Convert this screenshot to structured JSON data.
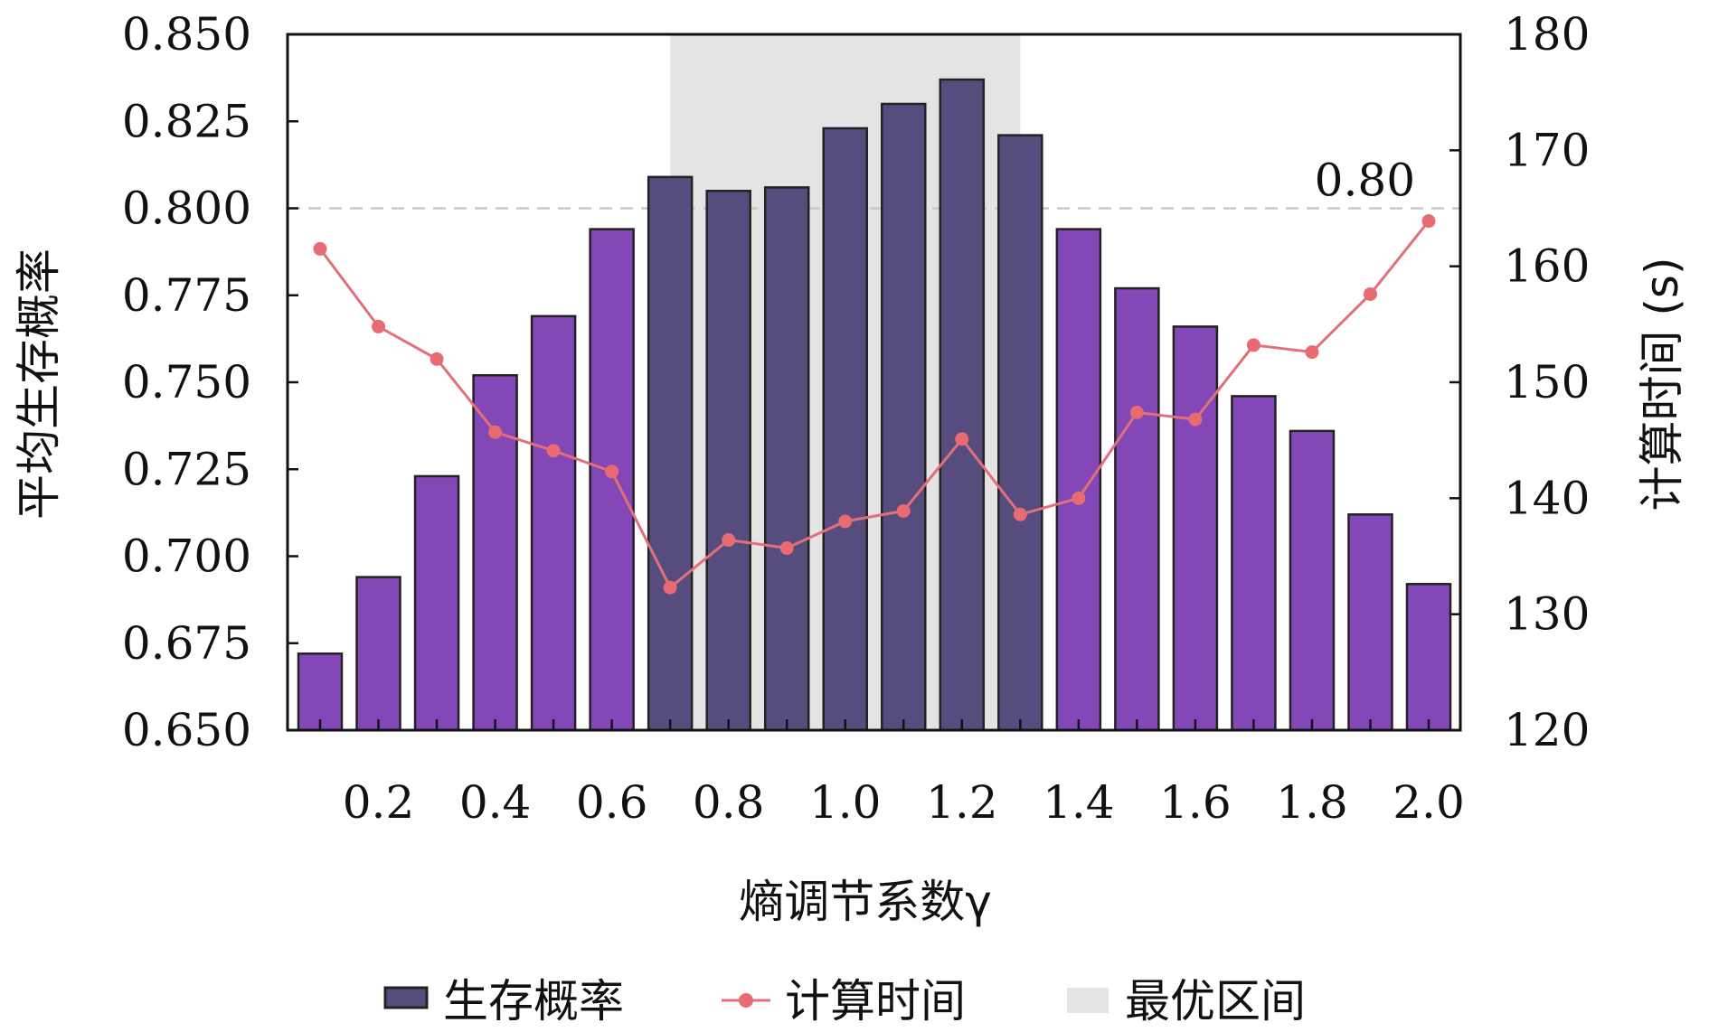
{
  "chart_data": {
    "type": "bar",
    "xlabel": "熵调节系数γ",
    "ylabel_left": "平均生存概率",
    "ylabel_right": "计算时间 (s)",
    "ylim_left": [
      0.65,
      0.85
    ],
    "ylim_right": [
      120,
      180
    ],
    "yticks_left": [
      "0.650",
      "0.675",
      "0.700",
      "0.725",
      "0.750",
      "0.775",
      "0.800",
      "0.825",
      "0.850"
    ],
    "yticks_right": [
      "120",
      "130",
      "140",
      "150",
      "160",
      "170",
      "180"
    ],
    "xticks": [
      "0.2",
      "0.4",
      "0.6",
      "0.8",
      "1.0",
      "1.2",
      "1.4",
      "1.6",
      "1.8",
      "2.0"
    ],
    "x": [
      0.1,
      0.2,
      0.3,
      0.4,
      0.5,
      0.6,
      0.7,
      0.8,
      0.9,
      1.0,
      1.1,
      1.2,
      1.3,
      1.4,
      1.5,
      1.6,
      1.7,
      1.8,
      1.9,
      2.0
    ],
    "series": [
      {
        "name": "生存概率",
        "type": "bar",
        "axis": "left",
        "values": [
          0.672,
          0.694,
          0.723,
          0.752,
          0.769,
          0.794,
          0.809,
          0.805,
          0.806,
          0.823,
          0.83,
          0.837,
          0.821,
          0.794,
          0.777,
          0.766,
          0.746,
          0.736,
          0.712,
          0.692
        ]
      },
      {
        "name": "计算时间",
        "type": "line",
        "axis": "right",
        "values": [
          161.5,
          154.8,
          152.0,
          145.7,
          144.1,
          142.3,
          132.3,
          136.4,
          135.7,
          138.0,
          138.9,
          145.1,
          138.6,
          140.0,
          147.4,
          146.8,
          153.2,
          152.6,
          157.6,
          163.9
        ]
      }
    ],
    "optimal_range": [
      0.7,
      1.3
    ],
    "reference_line": {
      "value": 0.8,
      "label": "0.80"
    },
    "legend": [
      "生存概率",
      "计算时间",
      "最优区间"
    ],
    "legend_position": "bottom",
    "colors": {
      "bar": "#8447b8",
      "bar_optimal": "#574c7e",
      "bar_edge": "#222222",
      "line": "#e0707a",
      "marker": "#e86a72",
      "optimal_band": "#e4e4e4",
      "reference_line": "#c8c8c8",
      "axes": "#111111"
    },
    "grid": false
  }
}
